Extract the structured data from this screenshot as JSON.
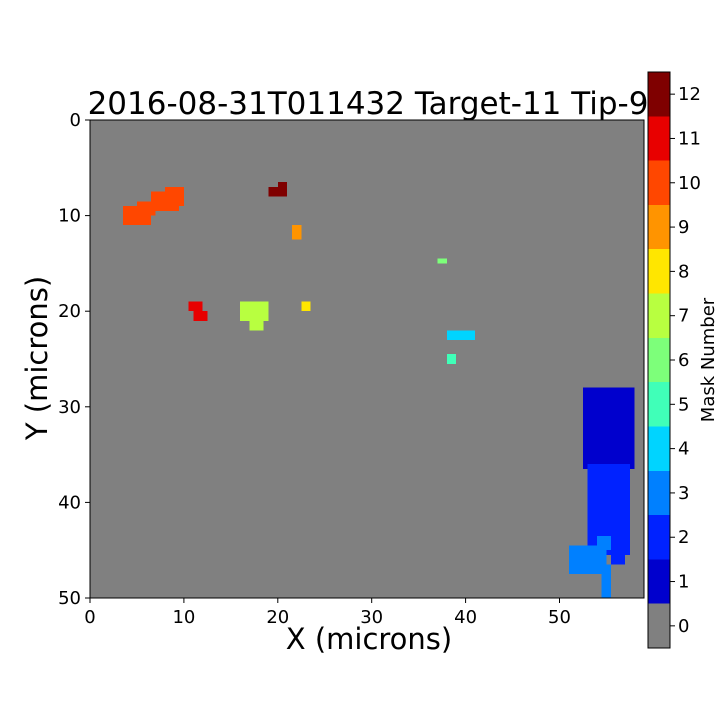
{
  "chart_data": {
    "type": "heatmap",
    "title": "2016-08-31T011432 Target-11 Tip-9",
    "xlabel": "X (microns)",
    "ylabel": "Y (microns)",
    "xlim": [
      0,
      59
    ],
    "ylim": [
      50,
      0
    ],
    "y_inverted": true,
    "xticks": [
      "0",
      "10",
      "20",
      "30",
      "40",
      "50"
    ],
    "yticks": [
      "0",
      "10",
      "20",
      "30",
      "40",
      "50"
    ],
    "background_color": "#808080",
    "colorbar": {
      "label": "Mask Number",
      "ticks": [
        "0",
        "1",
        "2",
        "3",
        "4",
        "5",
        "6",
        "7",
        "8",
        "9",
        "10",
        "11",
        "12"
      ],
      "colors": [
        "#808080",
        "#0000cd",
        "#0022ff",
        "#0080ff",
        "#00d4ff",
        "#40ffb8",
        "#7dff7a",
        "#b8ff40",
        "#ffe600",
        "#ff9400",
        "#ff4700",
        "#e80000",
        "#7f0000"
      ]
    },
    "masks": [
      {
        "id": 1,
        "regions": [
          [
            52.5,
            28.0,
            58.0,
            36.5
          ]
        ]
      },
      {
        "id": 2,
        "regions": [
          [
            53.0,
            36.0,
            57.5,
            45.5
          ],
          [
            55.5,
            44.5,
            57.0,
            46.5
          ]
        ]
      },
      {
        "id": 3,
        "regions": [
          [
            51.0,
            44.5,
            55.0,
            47.5
          ],
          [
            54.0,
            43.5,
            55.5,
            45.0
          ],
          [
            54.5,
            46.5,
            55.5,
            50.0
          ]
        ]
      },
      {
        "id": 4,
        "regions": [
          [
            38.0,
            22.0,
            41.0,
            23.0
          ]
        ]
      },
      {
        "id": 5,
        "regions": [
          [
            38.0,
            24.5,
            39.0,
            25.5
          ]
        ]
      },
      {
        "id": 6,
        "regions": [
          [
            37.0,
            14.5,
            38.0,
            15.0
          ]
        ]
      },
      {
        "id": 7,
        "regions": [
          [
            16.0,
            19.0,
            19.0,
            21.0
          ],
          [
            17.0,
            21.0,
            18.5,
            22.0
          ]
        ]
      },
      {
        "id": 8,
        "regions": [
          [
            22.5,
            19.0,
            23.5,
            20.0
          ]
        ]
      },
      {
        "id": 9,
        "regions": [
          [
            21.5,
            11.0,
            22.5,
            12.5
          ]
        ]
      },
      {
        "id": 10,
        "regions": [
          [
            3.5,
            9.0,
            6.5,
            11.0
          ],
          [
            5.0,
            8.5,
            7.0,
            10.0
          ],
          [
            6.5,
            7.5,
            9.5,
            9.5
          ],
          [
            8.0,
            7.0,
            10.0,
            9.0
          ]
        ]
      },
      {
        "id": 11,
        "regions": [
          [
            10.5,
            19.0,
            12.0,
            20.0
          ],
          [
            11.0,
            20.0,
            12.5,
            21.0
          ]
        ]
      },
      {
        "id": 12,
        "regions": [
          [
            19.0,
            7.0,
            21.0,
            8.0
          ],
          [
            20.0,
            6.5,
            21.0,
            7.0
          ]
        ]
      }
    ]
  }
}
